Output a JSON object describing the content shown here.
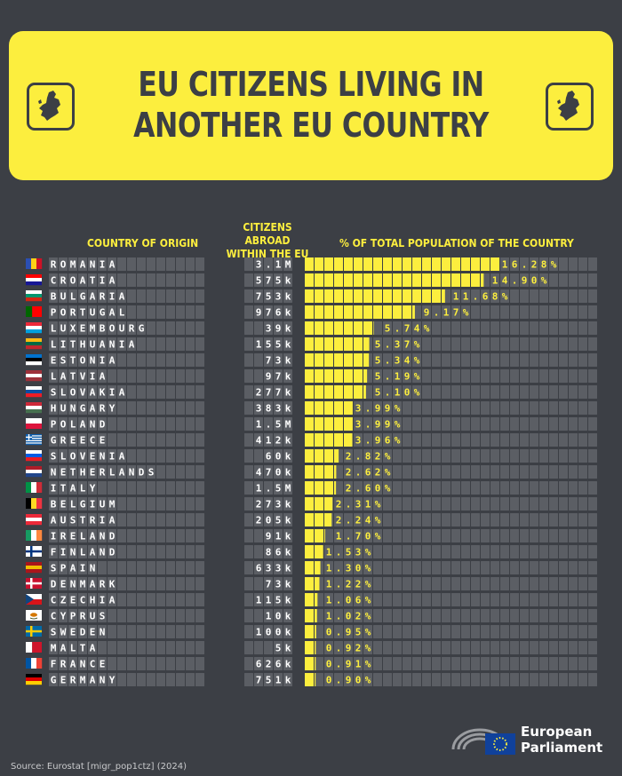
{
  "header": {
    "title_line1": "EU CITIZENS LIVING IN",
    "title_line2": "ANOTHER EU COUNTRY",
    "icon": "eu-map-icon"
  },
  "columns": {
    "country": "COUNTRY OF ORIGIN",
    "abroad_line1": "CITIZENS ABROAD",
    "abroad_line2": "WITHIN THE EU",
    "pct": "% OF TOTAL POPULATION OF THE COUNTRY"
  },
  "colors": {
    "background": "#3c3f45",
    "accent": "#fcee3e",
    "cell": "#5b5e64"
  },
  "chart_data": {
    "type": "bar",
    "title": "EU CITIZENS LIVING IN ANOTHER EU COUNTRY",
    "xlabel": "",
    "ylabel": "% OF TOTAL POPULATION OF THE COUNTRY",
    "orientation": "horizontal",
    "categories": [
      "ROMANIA",
      "CROATIA",
      "BULGARIA",
      "PORTUGAL",
      "LUXEMBOURG",
      "LITHUANIA",
      "ESTONIA",
      "LATVIA",
      "SLOVAKIA",
      "HUNGARY",
      "POLAND",
      "GREECE",
      "SLOVENIA",
      "NETHERLANDS",
      "ITALY",
      "BELGIUM",
      "AUSTRIA",
      "IRELAND",
      "FINLAND",
      "SPAIN",
      "DENMARK",
      "CZECHIA",
      "CYPRUS",
      "SWEDEN",
      "MALTA",
      "FRANCE",
      "GERMANY"
    ],
    "abroad": [
      "3.1M",
      "575k",
      "753k",
      "976k",
      "39k",
      "155k",
      "73k",
      "97k",
      "277k",
      "383k",
      "1.5M",
      "412k",
      "60k",
      "470k",
      "1.5M",
      "273k",
      "205k",
      "91k",
      "86k",
      "633k",
      "73k",
      "115k",
      "10k",
      "100k",
      "5k",
      "626k",
      "751k"
    ],
    "values": [
      16.28,
      14.9,
      11.68,
      9.17,
      5.74,
      5.37,
      5.34,
      5.19,
      5.1,
      3.99,
      3.99,
      3.96,
      2.82,
      2.62,
      2.6,
      2.31,
      2.24,
      1.7,
      1.53,
      1.3,
      1.22,
      1.06,
      1.02,
      0.95,
      0.92,
      0.91,
      0.9
    ],
    "labels": [
      "16.28%",
      "14.90%",
      "11.68%",
      "9.17%",
      "5.74%",
      "5.37%",
      "5.34%",
      "5.19%",
      "5.10%",
      "3.99%",
      "3.99%",
      "3.96%",
      "2.82%",
      "2.62%",
      "2.60%",
      "2.31%",
      "2.24%",
      "1.70%",
      "1.53%",
      "1.30%",
      "1.22%",
      "1.06%",
      "1.02%",
      "0.95%",
      "0.92%",
      "0.91%",
      "0.90%"
    ],
    "flags": [
      {
        "type": "v",
        "c": [
          "#2b4fb3",
          "#fcd116",
          "#ce1126"
        ]
      },
      {
        "type": "h",
        "c": [
          "#ff0000",
          "#ffffff",
          "#171796"
        ]
      },
      {
        "type": "h",
        "c": [
          "#ffffff",
          "#00966e",
          "#d62612"
        ]
      },
      {
        "type": "v2",
        "c": [
          "#006600",
          "#ff0000"
        ]
      },
      {
        "type": "h",
        "c": [
          "#ed2939",
          "#ffffff",
          "#00a1de"
        ]
      },
      {
        "type": "h",
        "c": [
          "#fdb913",
          "#006a44",
          "#c1272d"
        ]
      },
      {
        "type": "h",
        "c": [
          "#0072ce",
          "#000000",
          "#ffffff"
        ]
      },
      {
        "type": "h",
        "c": [
          "#9e3039",
          "#ffffff",
          "#9e3039"
        ]
      },
      {
        "type": "h",
        "c": [
          "#ffffff",
          "#0b4ea2",
          "#ee1c25"
        ]
      },
      {
        "type": "h",
        "c": [
          "#ce2939",
          "#ffffff",
          "#477050"
        ]
      },
      {
        "type": "h2",
        "c": [
          "#ffffff",
          "#dc143c"
        ]
      },
      {
        "type": "stripes",
        "c": [
          "#0d5eaf",
          "#ffffff"
        ]
      },
      {
        "type": "h",
        "c": [
          "#ffffff",
          "#005ce5",
          "#ed1c24"
        ]
      },
      {
        "type": "h",
        "c": [
          "#ae1c28",
          "#ffffff",
          "#21468b"
        ]
      },
      {
        "type": "v",
        "c": [
          "#009246",
          "#ffffff",
          "#ce2b37"
        ]
      },
      {
        "type": "v",
        "c": [
          "#000000",
          "#fdda24",
          "#ef3340"
        ]
      },
      {
        "type": "h",
        "c": [
          "#ed2939",
          "#ffffff",
          "#ed2939"
        ]
      },
      {
        "type": "v",
        "c": [
          "#169b62",
          "#ffffff",
          "#ff883e"
        ]
      },
      {
        "type": "cross",
        "c": [
          "#ffffff",
          "#003580"
        ]
      },
      {
        "type": "h",
        "c": [
          "#aa151b",
          "#f1bf00",
          "#aa151b"
        ]
      },
      {
        "type": "cross",
        "c": [
          "#c8102e",
          "#ffffff"
        ]
      },
      {
        "type": "cz",
        "c": [
          "#ffffff",
          "#d7141a",
          "#11457e"
        ]
      },
      {
        "type": "solid",
        "c": [
          "#ffffff"
        ]
      },
      {
        "type": "cross",
        "c": [
          "#006aa7",
          "#fecc00"
        ]
      },
      {
        "type": "v2",
        "c": [
          "#ffffff",
          "#cf142b"
        ]
      },
      {
        "type": "v",
        "c": [
          "#0055a4",
          "#ffffff",
          "#ef4135"
        ]
      },
      {
        "type": "h",
        "c": [
          "#000000",
          "#dd0000",
          "#ffce00"
        ]
      }
    ]
  },
  "footer": {
    "source": "Source: Eurostat [migr_pop1ctz] (2024)",
    "org_line1": "European",
    "org_line2": "Parliament",
    "logo_icon": "european-parliament-logo-icon"
  }
}
